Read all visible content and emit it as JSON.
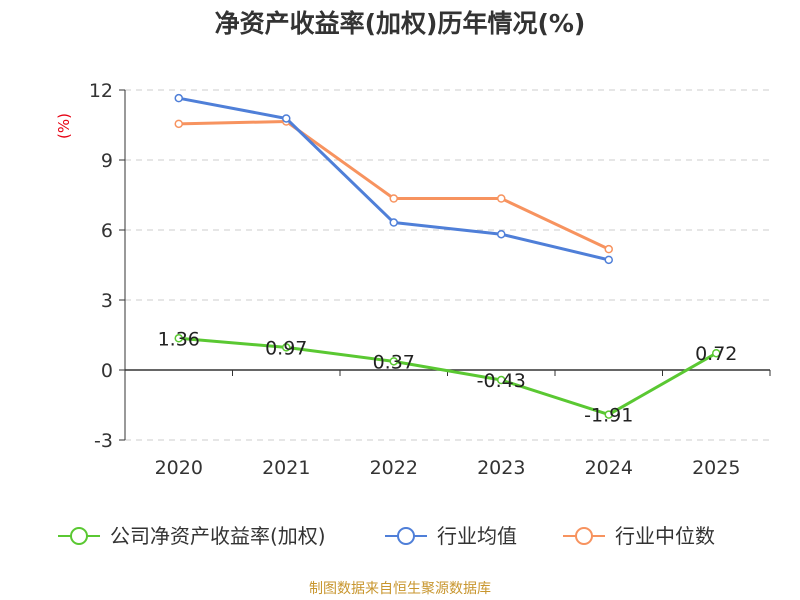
{
  "title": "净资产收益率(加权)历年情况(%)",
  "source": "制图数据来自恒生聚源数据库",
  "chart_data": {
    "type": "line",
    "ylabel": "(%)",
    "xlabel": "",
    "ylim": [
      -3,
      12
    ],
    "yticks": [
      -3,
      0,
      3,
      6,
      9,
      12
    ],
    "categories": [
      "2020",
      "2021",
      "2022",
      "2023",
      "2024",
      "2025"
    ],
    "grid": true,
    "legend_position": "bottom",
    "series": [
      {
        "name": "公司净资产收益率(加权)",
        "color": "#5ac832",
        "values": [
          1.36,
          0.97,
          0.37,
          -0.43,
          -1.91,
          0.72
        ],
        "labels": [
          "1.36",
          "0.97",
          "0.37",
          "-0.43",
          "-1.91",
          "0.72"
        ]
      },
      {
        "name": "行业均值",
        "color": "#4f7fd8",
        "values": [
          11.65,
          10.78,
          6.32,
          5.82,
          4.72,
          null
        ]
      },
      {
        "name": "行业中位数",
        "color": "#f7935f",
        "values": [
          10.55,
          10.65,
          7.35,
          7.35,
          5.18,
          null
        ]
      }
    ]
  }
}
